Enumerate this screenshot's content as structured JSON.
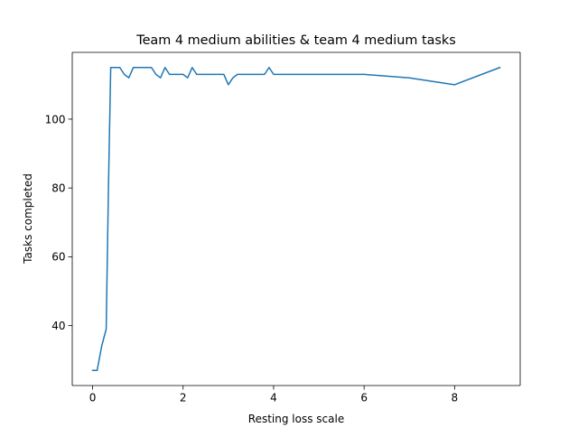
{
  "chart_data": {
    "type": "line",
    "title": "Team 4 medium abilities & team 4 medium tasks",
    "xlabel": "Resting loss scale",
    "ylabel": "Tasks completed",
    "xlim": [
      -0.45,
      9.45
    ],
    "ylim": [
      22.6,
      119.4
    ],
    "xticks": [
      0,
      2,
      4,
      6,
      8
    ],
    "yticks": [
      40,
      60,
      80,
      100
    ],
    "grid": false,
    "legend": "none",
    "series": [
      {
        "color": "#1f77b4",
        "x": [
          0.0,
          0.1,
          0.2,
          0.3,
          0.35,
          0.4,
          0.5,
          0.6,
          0.7,
          0.8,
          0.9,
          1.0,
          1.1,
          1.2,
          1.3,
          1.4,
          1.5,
          1.6,
          1.7,
          1.8,
          1.9,
          2.0,
          2.1,
          2.2,
          2.3,
          2.4,
          2.5,
          2.6,
          2.7,
          2.8,
          2.9,
          3.0,
          3.1,
          3.2,
          3.3,
          3.4,
          3.5,
          3.6,
          3.7,
          3.8,
          3.9,
          4.0,
          5.0,
          6.0,
          7.0,
          8.0,
          9.0
        ],
        "y": [
          27,
          27,
          34,
          39,
          80,
          115,
          115,
          115,
          113,
          112,
          115,
          115,
          115,
          115,
          115,
          113,
          112,
          115,
          113,
          113,
          113,
          113,
          112,
          115,
          113,
          113,
          113,
          113,
          113,
          113,
          113,
          110,
          112,
          113,
          113,
          113,
          113,
          113,
          113,
          113,
          115,
          113,
          113,
          113,
          112,
          110,
          115
        ]
      }
    ]
  }
}
